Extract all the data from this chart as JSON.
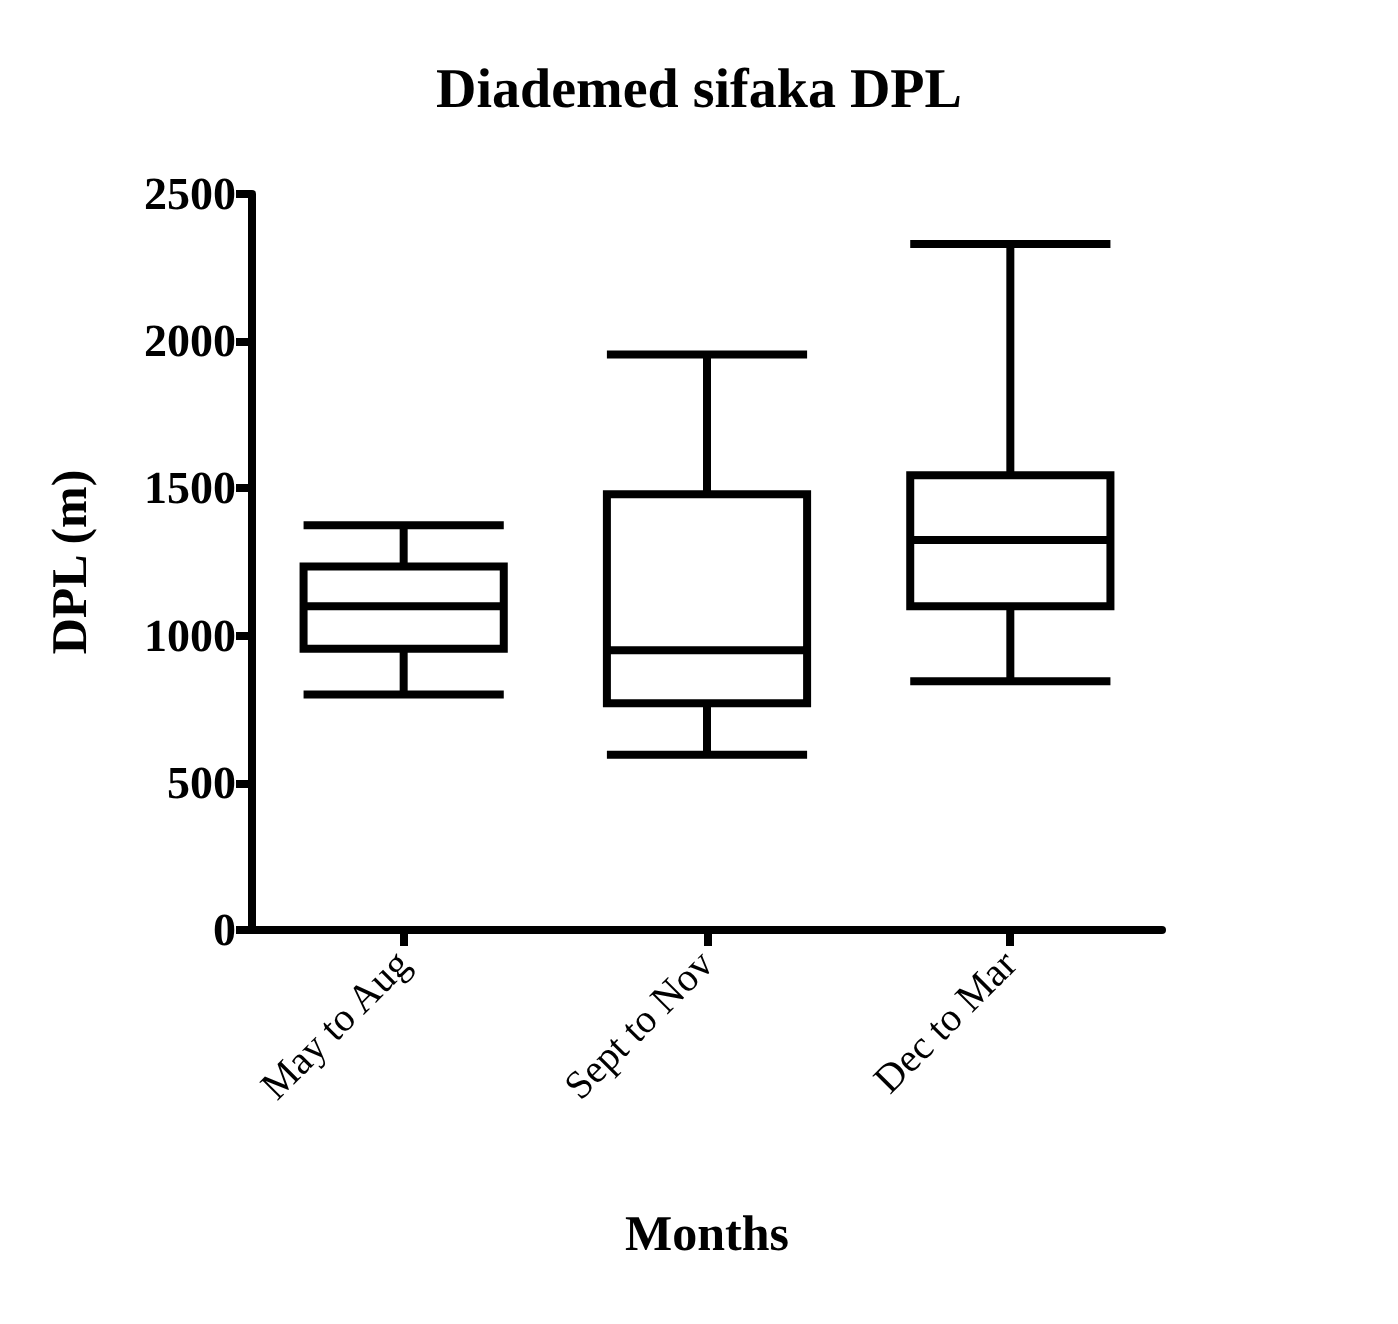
{
  "chart_data": {
    "type": "box",
    "title": "Diademed sifaka DPL",
    "xlabel": "Months",
    "ylabel": "DPL (m)",
    "categories": [
      "May to Aug",
      "Sept to Nov",
      "Dec to Mar"
    ],
    "boxes": [
      {
        "low": 800,
        "q1": 955,
        "median": 1100,
        "q3": 1235,
        "high": 1375
      },
      {
        "low": 595,
        "q1": 770,
        "median": 950,
        "q3": 1480,
        "high": 1955
      },
      {
        "low": 845,
        "q1": 1100,
        "median": 1325,
        "q3": 1545,
        "high": 2330
      }
    ],
    "color": "#000000",
    "ylim": [
      0,
      2500
    ],
    "yticks": [
      0,
      500,
      1000,
      1500,
      2000,
      2500
    ],
    "grid": false
  }
}
